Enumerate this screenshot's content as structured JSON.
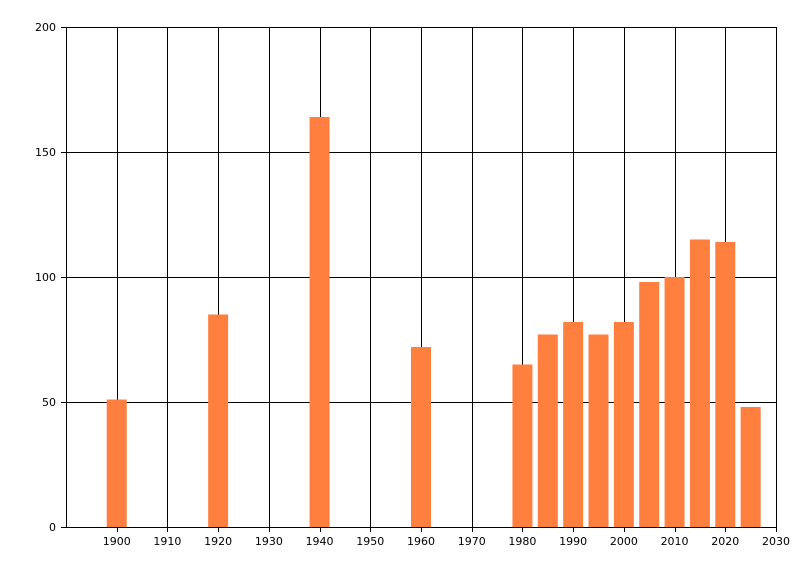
{
  "chart_data": {
    "type": "bar",
    "title": "",
    "xlabel": "",
    "ylabel": "",
    "xlim": [
      1890,
      2030
    ],
    "ylim": [
      0,
      200
    ],
    "x_ticks": [
      1900,
      1910,
      1920,
      1930,
      1940,
      1950,
      1960,
      1970,
      1980,
      1990,
      2000,
      2010,
      2020,
      2030
    ],
    "y_ticks": [
      0,
      50,
      100,
      150,
      200
    ],
    "grid": true,
    "bar_color": "#FF7F3F",
    "series": [
      {
        "x": [
          1900,
          1920,
          1940,
          1960,
          1980,
          1985,
          1990,
          1995,
          2000,
          2005,
          2010,
          2015,
          2020,
          2025
        ],
        "values": [
          51,
          85,
          164,
          72,
          65,
          77,
          82,
          77,
          82,
          98,
          100,
          115,
          114,
          48
        ]
      }
    ]
  }
}
